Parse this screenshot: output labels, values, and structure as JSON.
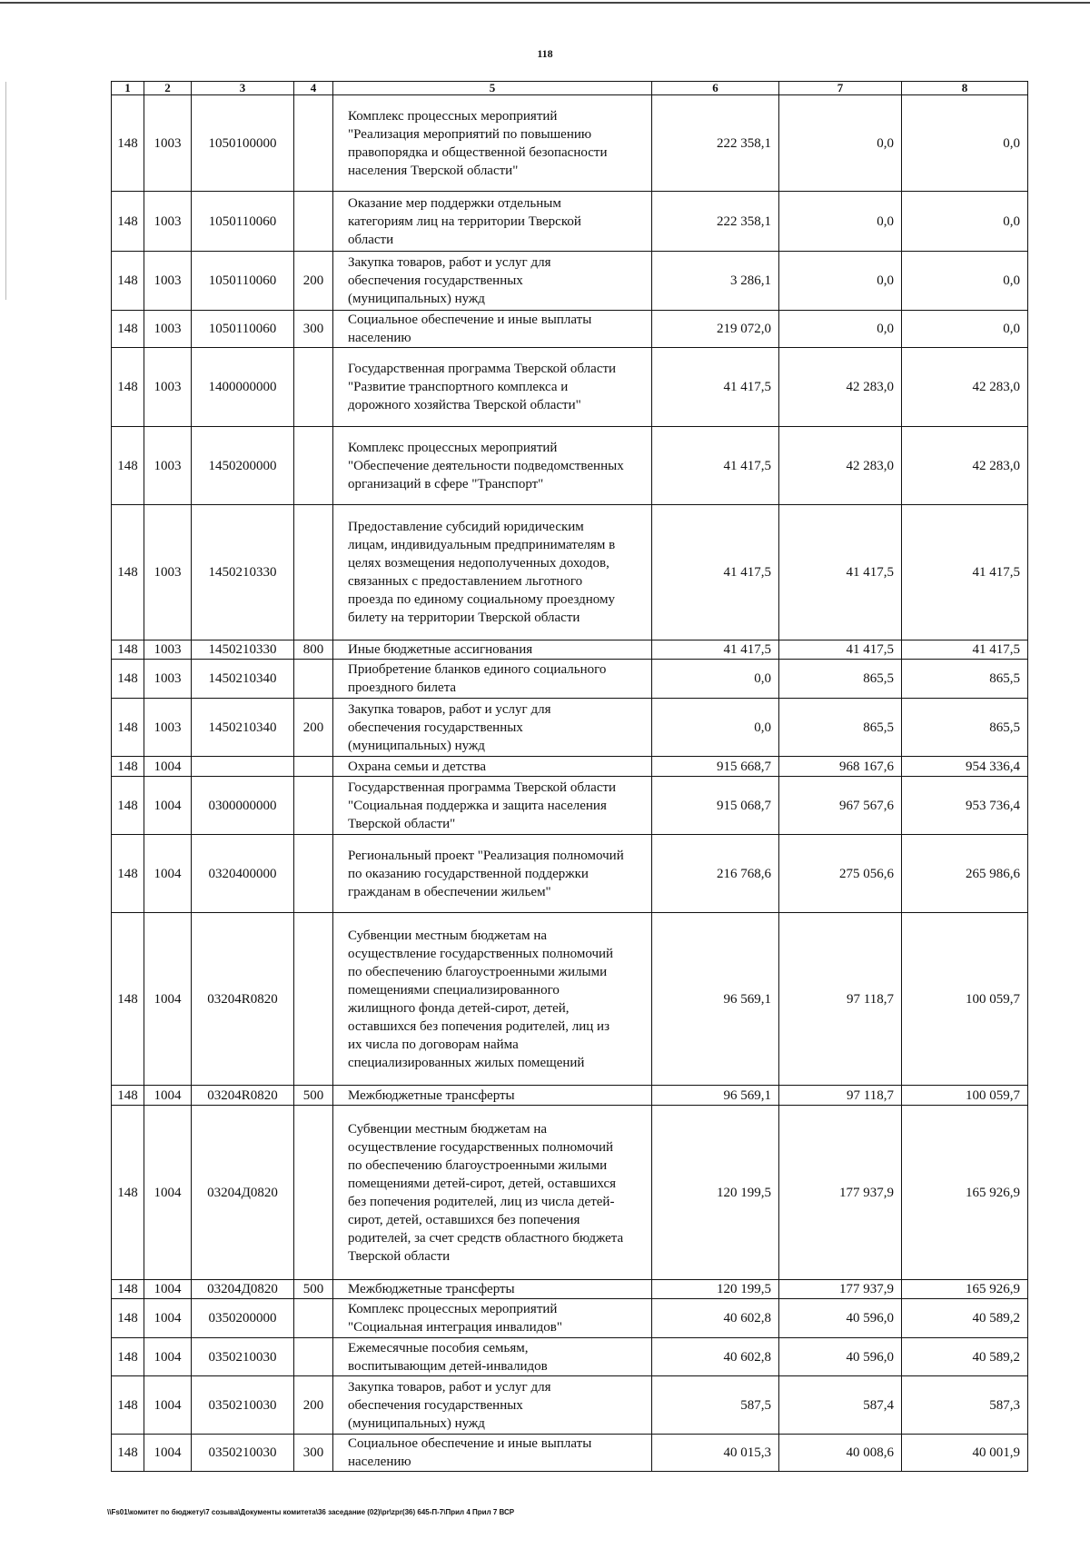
{
  "page_number": "118",
  "headers": [
    "1",
    "2",
    "3",
    "4",
    "5",
    "6",
    "7",
    "8"
  ],
  "rows": [
    {
      "c1": "148",
      "c2": "1003",
      "c3": "1050100000",
      "c4": "",
      "desc": "Комплекс процессных мероприятий\n\"Реализация мероприятий по повышению\nправопорядка и общественной безопасности\nнаселения Тверской области\"",
      "v6": "222 358,1",
      "v7": "0,0",
      "v8": "0,0"
    },
    {
      "c1": "148",
      "c2": "1003",
      "c3": "1050110060",
      "c4": "",
      "desc": "Оказание мер поддержки отдельным\nкатегориям лиц на территории Тверской\nобласти",
      "v6": "222 358,1",
      "v7": "0,0",
      "v8": "0,0"
    },
    {
      "c1": "148",
      "c2": "1003",
      "c3": "1050110060",
      "c4": "200",
      "desc": "Закупка товаров, работ и услуг для\nобеспечения государственных\n(муниципальных) нужд",
      "v6": "3 286,1",
      "v7": "0,0",
      "v8": "0,0"
    },
    {
      "c1": "148",
      "c2": "1003",
      "c3": "1050110060",
      "c4": "300",
      "desc": "Социальное обеспечение и иные выплаты\nнаселению",
      "v6": "219 072,0",
      "v7": "0,0",
      "v8": "0,0"
    },
    {
      "c1": "148",
      "c2": "1003",
      "c3": "1400000000",
      "c4": "",
      "desc": "Государственная программа Тверской области\n\"Развитие транспортного комплекса и\nдорожного хозяйства Тверской области\"",
      "v6": "41 417,5",
      "v7": "42 283,0",
      "v8": "42 283,0"
    },
    {
      "c1": "148",
      "c2": "1003",
      "c3": "1450200000",
      "c4": "",
      "desc": "Комплекс процессных мероприятий\n\"Обеспечение деятельности подведомственных\nорганизаций в сфере \"Транспорт\"",
      "v6": "41 417,5",
      "v7": "42 283,0",
      "v8": "42 283,0"
    },
    {
      "c1": "148",
      "c2": "1003",
      "c3": "1450210330",
      "c4": "",
      "desc": "Предоставление субсидий юридическим\nлицам, индивидуальным предпринимателям в\nцелях возмещения недополученных доходов,\nсвязанных с предоставлением льготного\nпроезда по единому социальному проездному\nбилету на территории Тверской области",
      "v6": "41 417,5",
      "v7": "41 417,5",
      "v8": "41 417,5"
    },
    {
      "c1": "148",
      "c2": "1003",
      "c3": "1450210330",
      "c4": "800",
      "desc": "Иные бюджетные ассигнования",
      "v6": "41 417,5",
      "v7": "41 417,5",
      "v8": "41 417,5"
    },
    {
      "c1": "148",
      "c2": "1003",
      "c3": "1450210340",
      "c4": "",
      "desc": "Приобретение бланков единого социального\nпроездного билета",
      "v6": "0,0",
      "v7": "865,5",
      "v8": "865,5"
    },
    {
      "c1": "148",
      "c2": "1003",
      "c3": "1450210340",
      "c4": "200",
      "desc": "Закупка товаров, работ и услуг для\nобеспечения государственных\n(муниципальных) нужд",
      "v6": "0,0",
      "v7": "865,5",
      "v8": "865,5"
    },
    {
      "c1": "148",
      "c2": "1004",
      "c3": "",
      "c4": "",
      "desc": "Охрана семьи и детства",
      "v6": "915 668,7",
      "v7": "968 167,6",
      "v8": "954 336,4"
    },
    {
      "c1": "148",
      "c2": "1004",
      "c3": "0300000000",
      "c4": "",
      "desc": "Государственная программа Тверской области\n\"Социальная поддержка и защита населения\nТверской области\"",
      "v6": "915 068,7",
      "v7": "967 567,6",
      "v8": "953 736,4"
    },
    {
      "c1": "148",
      "c2": "1004",
      "c3": "0320400000",
      "c4": "",
      "desc": "Региональный проект \"Реализация полномочий\nпо оказанию государственной поддержки\nгражданам в обеспечении жильем\"",
      "v6": "216 768,6",
      "v7": "275 056,6",
      "v8": "265 986,6"
    },
    {
      "c1": "148",
      "c2": "1004",
      "c3": "03204R0820",
      "c4": "",
      "desc": "Субвенции местным бюджетам на\nосуществление государственных полномочий\nпо обеспечению благоустроенными жилыми\nпомещениями специализированного\nжилищного фонда детей-сирот, детей,\nоставшихся без попечения родителей, лиц из\nих числа по договорам найма\nспециализированных жилых помещений",
      "v6": "96 569,1",
      "v7": "97 118,7",
      "v8": "100 059,7"
    },
    {
      "c1": "148",
      "c2": "1004",
      "c3": "03204R0820",
      "c4": "500",
      "desc": "Межбюджетные трансферты",
      "v6": "96 569,1",
      "v7": "97 118,7",
      "v8": "100 059,7"
    },
    {
      "c1": "148",
      "c2": "1004",
      "c3": "03204Д0820",
      "c4": "",
      "desc": "Субвенции местным бюджетам на\nосуществление государственных полномочий\nпо обеспечению благоустроенными жилыми\nпомещениями детей-сирот, детей, оставшихся\nбез попечения родителей, лиц из  числа детей-\nсирот, детей, оставшихся без попечения\nродителей, за счет средств областного бюджета\nТверской области",
      "v6": "120 199,5",
      "v7": "177 937,9",
      "v8": "165 926,9"
    },
    {
      "c1": "148",
      "c2": "1004",
      "c3": "03204Д0820",
      "c4": "500",
      "desc": "Межбюджетные трансферты",
      "v6": "120 199,5",
      "v7": "177 937,9",
      "v8": "165 926,9"
    },
    {
      "c1": "148",
      "c2": "1004",
      "c3": "0350200000",
      "c4": "",
      "desc": "Комплекс процессных мероприятий\n\"Социальная интеграция инвалидов\"",
      "v6": "40 602,8",
      "v7": "40 596,0",
      "v8": "40 589,2"
    },
    {
      "c1": "148",
      "c2": "1004",
      "c3": "0350210030",
      "c4": "",
      "desc": "Ежемесячные пособия семьям,\nвоспитывающим детей-инвалидов",
      "v6": "40 602,8",
      "v7": "40 596,0",
      "v8": "40 589,2"
    },
    {
      "c1": "148",
      "c2": "1004",
      "c3": "0350210030",
      "c4": "200",
      "desc": "Закупка товаров, работ и услуг для\nобеспечения государственных\n(муниципальных) нужд",
      "v6": "587,5",
      "v7": "587,4",
      "v8": "587,3"
    },
    {
      "c1": "148",
      "c2": "1004",
      "c3": "0350210030",
      "c4": "300",
      "desc": "Социальное обеспечение и иные выплаты\nнаселению",
      "v6": "40 015,3",
      "v7": "40 008,6",
      "v8": "40 001,9"
    }
  ],
  "footer_path": "\\\\Fs01\\комитет по бюджету\\7 созыва\\Документы комитета\\36 заседание (02)\\pr\\zpr(36) 645-П-7\\Прил 4 Прил 7 ВСР"
}
